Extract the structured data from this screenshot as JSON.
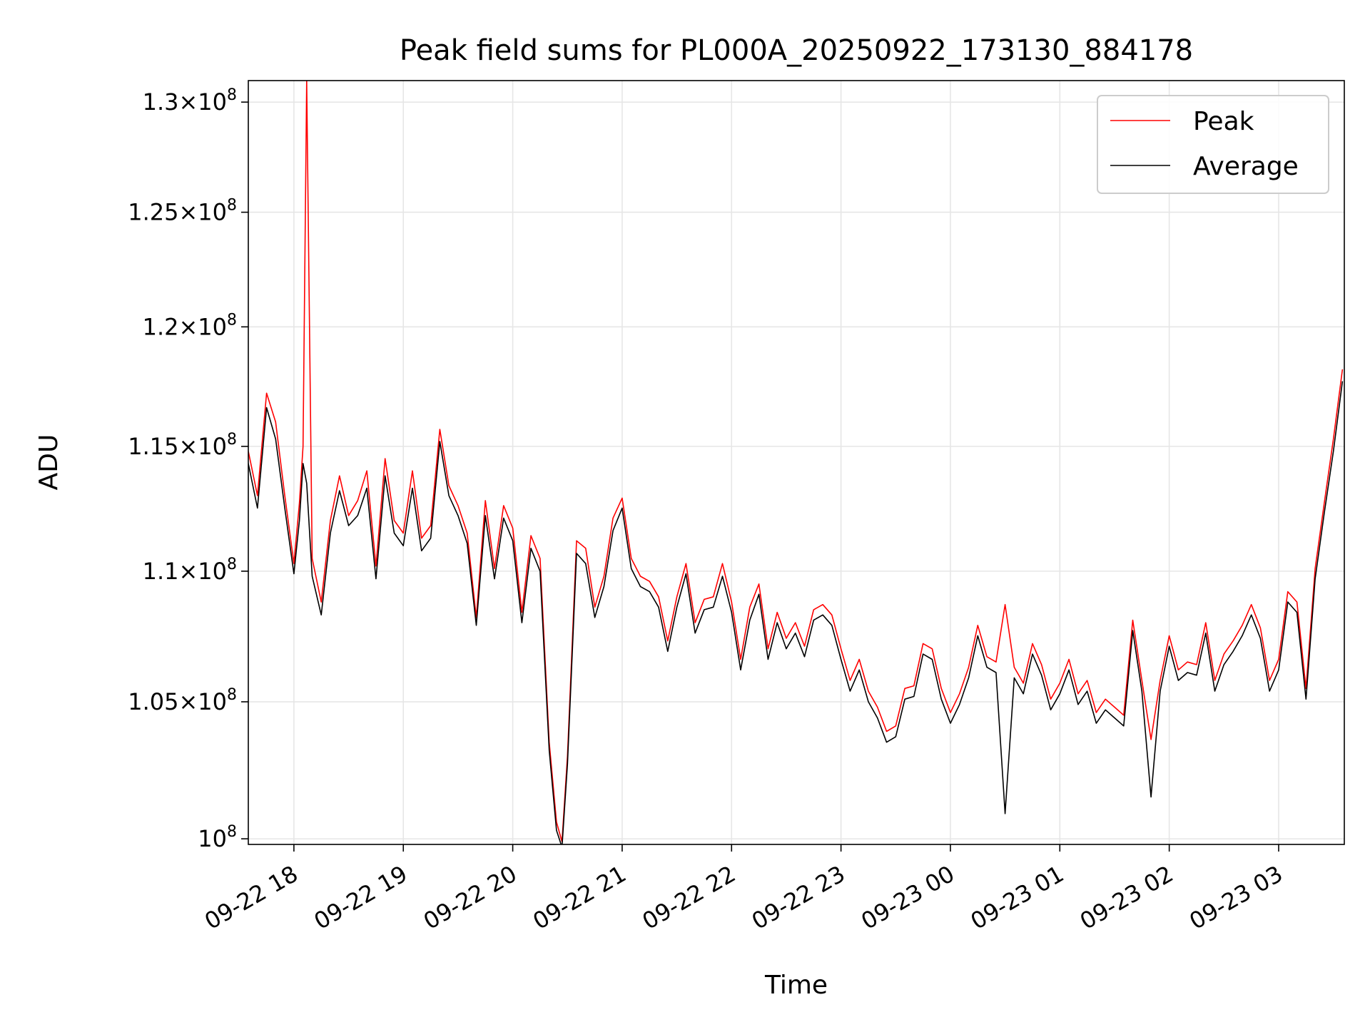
{
  "chart_data": {
    "type": "line",
    "title": "Peak field sums for PL000A_20250922_173130_884178",
    "xlabel": "Time",
    "ylabel": "ADU",
    "yscale": "log",
    "ylim": [
      99800000,
      131000000
    ],
    "xlim": [
      "09-22 17:35",
      "09-23 03:36"
    ],
    "grid": true,
    "legend_position": "top-right",
    "x_ticks": [
      "09-22 18",
      "09-22 19",
      "09-22 20",
      "09-22 21",
      "09-22 22",
      "09-22 23",
      "09-23 00",
      "09-23 01",
      "09-23 02",
      "09-23 03"
    ],
    "y_ticks": [
      {
        "value": 100000000,
        "mantissa": "",
        "exponent": "8"
      },
      {
        "value": 105000000,
        "mantissa": "1.05",
        "exponent": "8"
      },
      {
        "value": 110000000,
        "mantissa": "1.1",
        "exponent": "8"
      },
      {
        "value": 115000000,
        "mantissa": "1.15",
        "exponent": "8"
      },
      {
        "value": 120000000,
        "mantissa": "1.2",
        "exponent": "8"
      },
      {
        "value": 125000000,
        "mantissa": "1.25",
        "exponent": "8"
      },
      {
        "value": 130000000,
        "mantissa": "1.3",
        "exponent": "8"
      }
    ],
    "series": [
      {
        "name": "Peak",
        "color": "#ff0000",
        "x": [
          "09-22 17:35",
          "09-22 17:40",
          "09-22 17:45",
          "09-22 17:50",
          "09-22 17:55",
          "09-22 18:00",
          "09-22 18:03",
          "09-22 18:05",
          "09-22 18:07",
          "09-22 18:10",
          "09-22 18:15",
          "09-22 18:20",
          "09-22 18:25",
          "09-22 18:30",
          "09-22 18:35",
          "09-22 18:40",
          "09-22 18:45",
          "09-22 18:50",
          "09-22 18:55",
          "09-22 19:00",
          "09-22 19:05",
          "09-22 19:10",
          "09-22 19:15",
          "09-22 19:20",
          "09-22 19:25",
          "09-22 19:30",
          "09-22 19:35",
          "09-22 19:40",
          "09-22 19:45",
          "09-22 19:50",
          "09-22 19:55",
          "09-22 20:00",
          "09-22 20:05",
          "09-22 20:10",
          "09-22 20:15",
          "09-22 20:20",
          "09-22 20:24",
          "09-22 20:27",
          "09-22 20:30",
          "09-22 20:35",
          "09-22 20:40",
          "09-22 20:45",
          "09-22 20:50",
          "09-22 20:55",
          "09-22 21:00",
          "09-22 21:05",
          "09-22 21:10",
          "09-22 21:15",
          "09-22 21:20",
          "09-22 21:25",
          "09-22 21:30",
          "09-22 21:35",
          "09-22 21:40",
          "09-22 21:45",
          "09-22 21:50",
          "09-22 21:55",
          "09-22 22:00",
          "09-22 22:05",
          "09-22 22:10",
          "09-22 22:15",
          "09-22 22:20",
          "09-22 22:25",
          "09-22 22:30",
          "09-22 22:35",
          "09-22 22:40",
          "09-22 22:45",
          "09-22 22:50",
          "09-22 22:55",
          "09-22 23:00",
          "09-22 23:05",
          "09-22 23:10",
          "09-22 23:15",
          "09-22 23:20",
          "09-22 23:25",
          "09-22 23:30",
          "09-22 23:35",
          "09-22 23:40",
          "09-22 23:45",
          "09-22 23:50",
          "09-22 23:55",
          "09-23 00:00",
          "09-23 00:05",
          "09-23 00:10",
          "09-23 00:15",
          "09-23 00:20",
          "09-23 00:25",
          "09-23 00:30",
          "09-23 00:35",
          "09-23 00:40",
          "09-23 00:45",
          "09-23 00:50",
          "09-23 00:55",
          "09-23 01:00",
          "09-23 01:05",
          "09-23 01:10",
          "09-23 01:15",
          "09-23 01:20",
          "09-23 01:25",
          "09-23 01:30",
          "09-23 01:35",
          "09-23 01:40",
          "09-23 01:45",
          "09-23 01:50",
          "09-23 01:55",
          "09-23 02:00",
          "09-23 02:05",
          "09-23 02:10",
          "09-23 02:15",
          "09-23 02:20",
          "09-23 02:25",
          "09-23 02:30",
          "09-23 02:35",
          "09-23 02:40",
          "09-23 02:45",
          "09-23 02:50",
          "09-23 02:55",
          "09-23 03:00",
          "09-23 03:05",
          "09-23 03:10",
          "09-23 03:15",
          "09-23 03:20",
          "09-23 03:25",
          "09-23 03:30",
          "09-23 03:35"
        ],
        "values": [
          114800000,
          113000000,
          117200000,
          116000000,
          113000000,
          110300000,
          112700000,
          115000000,
          131000000,
          110500000,
          108800000,
          112000000,
          113800000,
          112200000,
          112800000,
          114000000,
          110200000,
          114500000,
          112000000,
          111500000,
          114000000,
          111300000,
          111800000,
          115700000,
          113400000,
          112600000,
          111500000,
          108200000,
          112800000,
          110100000,
          112600000,
          111700000,
          108400000,
          111400000,
          110500000,
          103500000,
          100600000,
          99900000,
          103000000,
          111200000,
          110900000,
          108600000,
          109800000,
          112100000,
          112900000,
          110500000,
          109800000,
          109600000,
          109000000,
          107300000,
          109000000,
          110300000,
          108000000,
          108900000,
          109000000,
          110300000,
          108800000,
          106600000,
          108600000,
          109500000,
          107000000,
          108400000,
          107400000,
          108000000,
          107100000,
          108500000,
          108700000,
          108300000,
          107000000,
          105800000,
          106600000,
          105400000,
          104800000,
          103900000,
          104100000,
          105500000,
          105600000,
          107200000,
          107000000,
          105500000,
          104600000,
          105300000,
          106300000,
          107900000,
          106700000,
          106500000,
          108700000,
          106300000,
          105700000,
          107200000,
          106400000,
          105100000,
          105700000,
          106600000,
          105300000,
          105800000,
          104600000,
          105100000,
          104800000,
          104500000,
          108100000,
          105800000,
          103600000,
          105800000,
          107500000,
          106200000,
          106500000,
          106400000,
          108000000,
          105800000,
          106800000,
          107300000,
          107900000,
          108700000,
          107800000,
          105800000,
          106600000,
          109200000,
          108800000,
          105500000,
          110100000,
          112700000,
          115300000,
          118200000
        ]
      },
      {
        "name": "Average",
        "color": "#000000",
        "x": [
          "09-22 17:35",
          "09-22 17:40",
          "09-22 17:45",
          "09-22 17:50",
          "09-22 17:55",
          "09-22 18:00",
          "09-22 18:03",
          "09-22 18:05",
          "09-22 18:07",
          "09-22 18:10",
          "09-22 18:15",
          "09-22 18:20",
          "09-22 18:25",
          "09-22 18:30",
          "09-22 18:35",
          "09-22 18:40",
          "09-22 18:45",
          "09-22 18:50",
          "09-22 18:55",
          "09-22 19:00",
          "09-22 19:05",
          "09-22 19:10",
          "09-22 19:15",
          "09-22 19:20",
          "09-22 19:25",
          "09-22 19:30",
          "09-22 19:35",
          "09-22 19:40",
          "09-22 19:45",
          "09-22 19:50",
          "09-22 19:55",
          "09-22 20:00",
          "09-22 20:05",
          "09-22 20:10",
          "09-22 20:15",
          "09-22 20:20",
          "09-22 20:24",
          "09-22 20:27",
          "09-22 20:30",
          "09-22 20:35",
          "09-22 20:40",
          "09-22 20:45",
          "09-22 20:50",
          "09-22 20:55",
          "09-22 21:00",
          "09-22 21:05",
          "09-22 21:10",
          "09-22 21:15",
          "09-22 21:20",
          "09-22 21:25",
          "09-22 21:30",
          "09-22 21:35",
          "09-22 21:40",
          "09-22 21:45",
          "09-22 21:50",
          "09-22 21:55",
          "09-22 22:00",
          "09-22 22:05",
          "09-22 22:10",
          "09-22 22:15",
          "09-22 22:20",
          "09-22 22:25",
          "09-22 22:30",
          "09-22 22:35",
          "09-22 22:40",
          "09-22 22:45",
          "09-22 22:50",
          "09-22 22:55",
          "09-22 23:00",
          "09-22 23:05",
          "09-22 23:10",
          "09-22 23:15",
          "09-22 23:20",
          "09-22 23:25",
          "09-22 23:30",
          "09-22 23:35",
          "09-22 23:40",
          "09-22 23:45",
          "09-22 23:50",
          "09-22 23:55",
          "09-23 00:00",
          "09-23 00:05",
          "09-23 00:10",
          "09-23 00:15",
          "09-23 00:20",
          "09-23 00:25",
          "09-23 00:30",
          "09-23 00:35",
          "09-23 00:40",
          "09-23 00:45",
          "09-23 00:50",
          "09-23 00:55",
          "09-23 01:00",
          "09-23 01:05",
          "09-23 01:10",
          "09-23 01:15",
          "09-23 01:20",
          "09-23 01:25",
          "09-23 01:30",
          "09-23 01:35",
          "09-23 01:40",
          "09-23 01:45",
          "09-23 01:50",
          "09-23 01:55",
          "09-23 02:00",
          "09-23 02:05",
          "09-23 02:10",
          "09-23 02:15",
          "09-23 02:20",
          "09-23 02:25",
          "09-23 02:30",
          "09-23 02:35",
          "09-23 02:40",
          "09-23 02:45",
          "09-23 02:50",
          "09-23 02:55",
          "09-23 03:00",
          "09-23 03:05",
          "09-23 03:10",
          "09-23 03:15",
          "09-23 03:20",
          "09-23 03:25",
          "09-23 03:30",
          "09-23 03:35"
        ],
        "values": [
          114300000,
          112500000,
          116600000,
          115300000,
          112500000,
          109900000,
          112000000,
          114300000,
          113500000,
          109800000,
          108300000,
          111500000,
          113200000,
          111800000,
          112200000,
          113300000,
          109700000,
          113800000,
          111500000,
          111000000,
          113300000,
          110800000,
          111300000,
          115200000,
          113000000,
          112200000,
          111100000,
          107900000,
          112200000,
          109700000,
          112100000,
          111200000,
          108000000,
          110900000,
          110000000,
          103200000,
          100300000,
          99700000,
          102700000,
          110700000,
          110300000,
          108200000,
          109400000,
          111600000,
          112500000,
          110100000,
          109400000,
          109200000,
          108600000,
          106900000,
          108600000,
          109900000,
          107600000,
          108500000,
          108600000,
          109800000,
          108400000,
          106200000,
          108100000,
          109100000,
          106600000,
          108000000,
          107000000,
          107600000,
          106700000,
          108100000,
          108300000,
          107900000,
          106600000,
          105400000,
          106200000,
          105000000,
          104400000,
          103500000,
          103700000,
          105100000,
          105200000,
          106800000,
          106600000,
          105100000,
          104200000,
          104900000,
          105900000,
          107500000,
          106300000,
          106100000,
          100900000,
          105900000,
          105300000,
          106800000,
          106000000,
          104700000,
          105300000,
          106200000,
          104900000,
          105400000,
          104200000,
          104700000,
          104400000,
          104100000,
          107700000,
          105400000,
          101500000,
          105400000,
          107100000,
          105800000,
          106100000,
          106000000,
          107600000,
          105400000,
          106400000,
          106900000,
          107500000,
          108300000,
          107400000,
          105400000,
          106200000,
          108800000,
          108400000,
          105100000,
          109700000,
          112300000,
          114800000,
          117700000
        ]
      }
    ]
  }
}
